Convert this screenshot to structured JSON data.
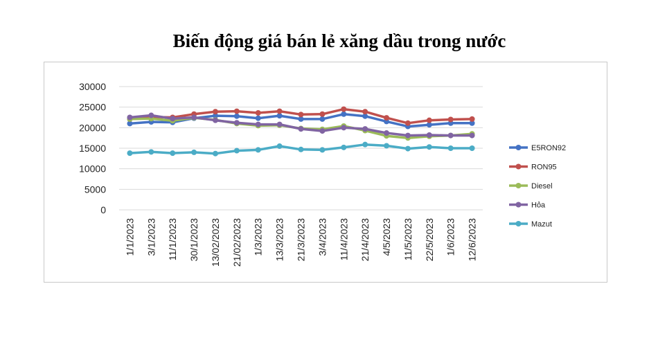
{
  "chart_data": {
    "type": "line",
    "title": "Biến động giá bán lẻ xăng dầu trong nước",
    "xlabel": "",
    "ylabel": "",
    "ylim": [
      0,
      30000
    ],
    "yticks": [
      0,
      5000,
      10000,
      15000,
      20000,
      25000,
      30000
    ],
    "grid": true,
    "legend_position": "right",
    "categories": [
      "1/1/2023",
      "3/1/2023",
      "11/1/2023",
      "30/1/2023",
      "13/02/2023",
      "21/02/2023",
      "1/3/2023",
      "13/3/2023",
      "21/3/2023",
      "3/4/2023",
      "11/4/2023",
      "21/4/2023",
      "4/5/2023",
      "11/5/2023",
      "22/5/2023",
      "1/6/2023",
      "12/6/2023"
    ],
    "series": [
      {
        "name": "E5RON92",
        "color": "#4472C4",
        "values": [
          21000,
          21400,
          21300,
          22300,
          22900,
          22800,
          22300,
          22900,
          22100,
          22100,
          23300,
          22800,
          21500,
          20300,
          20700,
          21100,
          21100
        ]
      },
      {
        "name": "RON95",
        "color": "#C0504D",
        "values": [
          22100,
          22600,
          22500,
          23300,
          23900,
          24000,
          23600,
          24000,
          23200,
          23300,
          24500,
          23900,
          22400,
          21100,
          21800,
          22000,
          22100
        ]
      },
      {
        "name": "Diesel",
        "color": "#9BBB59",
        "values": [
          22100,
          22200,
          21700,
          22400,
          21900,
          21000,
          20500,
          20600,
          19800,
          19600,
          20400,
          19300,
          18000,
          17500,
          17900,
          18100,
          18500
        ]
      },
      {
        "name": "Hỏa",
        "color": "#8064A2",
        "values": [
          22500,
          23000,
          22200,
          22500,
          21800,
          21200,
          20800,
          20800,
          19700,
          19200,
          20000,
          19700,
          18700,
          18100,
          18200,
          18100,
          18100
        ]
      },
      {
        "name": "Mazut",
        "color": "#4BACC6",
        "values": [
          13800,
          14100,
          13800,
          14000,
          13700,
          14400,
          14600,
          15500,
          14700,
          14600,
          15200,
          15900,
          15600,
          14900,
          15300,
          15000,
          15000
        ]
      }
    ]
  }
}
